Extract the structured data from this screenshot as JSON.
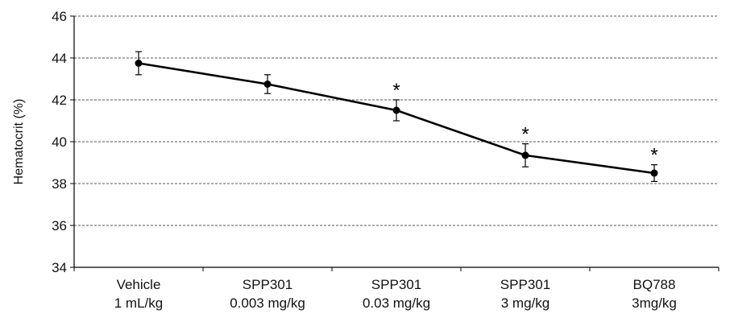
{
  "chart_data": {
    "type": "line",
    "title": "",
    "xlabel": "",
    "ylabel": "Hematocrit (%)",
    "ylim": [
      34,
      46
    ],
    "yticks": [
      34,
      36,
      38,
      40,
      42,
      44,
      46
    ],
    "grid": true,
    "categories": [
      [
        "Vehicle",
        "1 mL/kg"
      ],
      [
        "SPP301",
        "0.003 mg/kg"
      ],
      [
        "SPP301",
        "0.03 mg/kg"
      ],
      [
        "SPP301",
        "3 mg/kg"
      ],
      [
        "BQ788",
        "3mg/kg"
      ]
    ],
    "series": [
      {
        "values": [
          43.75,
          42.75,
          41.5,
          39.35,
          38.5
        ],
        "error": [
          0.55,
          0.45,
          0.5,
          0.55,
          0.4
        ],
        "significance": [
          "",
          "",
          "*",
          "*",
          "*"
        ]
      }
    ],
    "colors": {
      "line": "#000000",
      "marker": "#000000",
      "grid": "#555555",
      "axis": "#000000"
    }
  }
}
